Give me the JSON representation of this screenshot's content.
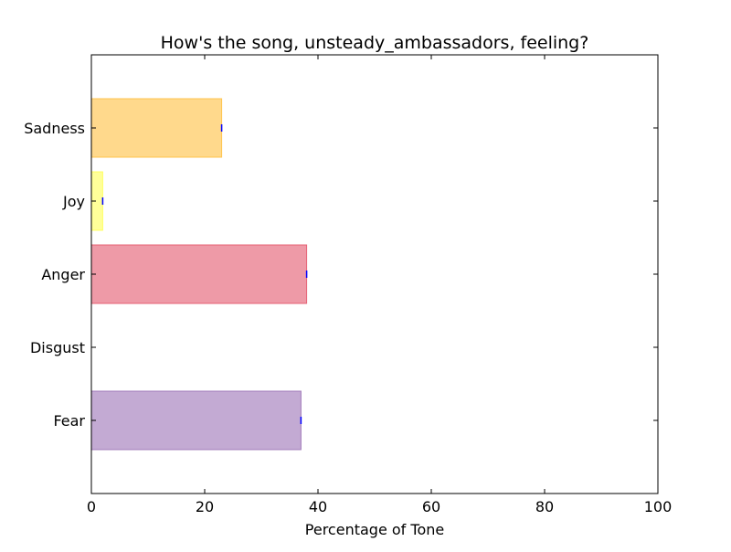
{
  "chart_data": {
    "type": "bar",
    "orientation": "horizontal",
    "title": "How's the song, unsteady_ambassadors, feeling?",
    "xlabel": "Percentage of Tone",
    "ylabel": "",
    "xlim": [
      0,
      100
    ],
    "xticks": [
      "0",
      "20",
      "40",
      "60",
      "80",
      "100"
    ],
    "categories": [
      "Fear",
      "Disgust",
      "Anger",
      "Joy",
      "Sadness"
    ],
    "values": [
      37,
      0,
      38,
      2,
      23
    ],
    "bar_colors": [
      "#9b72b6",
      "#60bd68",
      "#e3566c",
      "#ffff55",
      "#ffbf40"
    ],
    "error_marker_color": "#0000ff",
    "grid": false,
    "legend": "none"
  }
}
